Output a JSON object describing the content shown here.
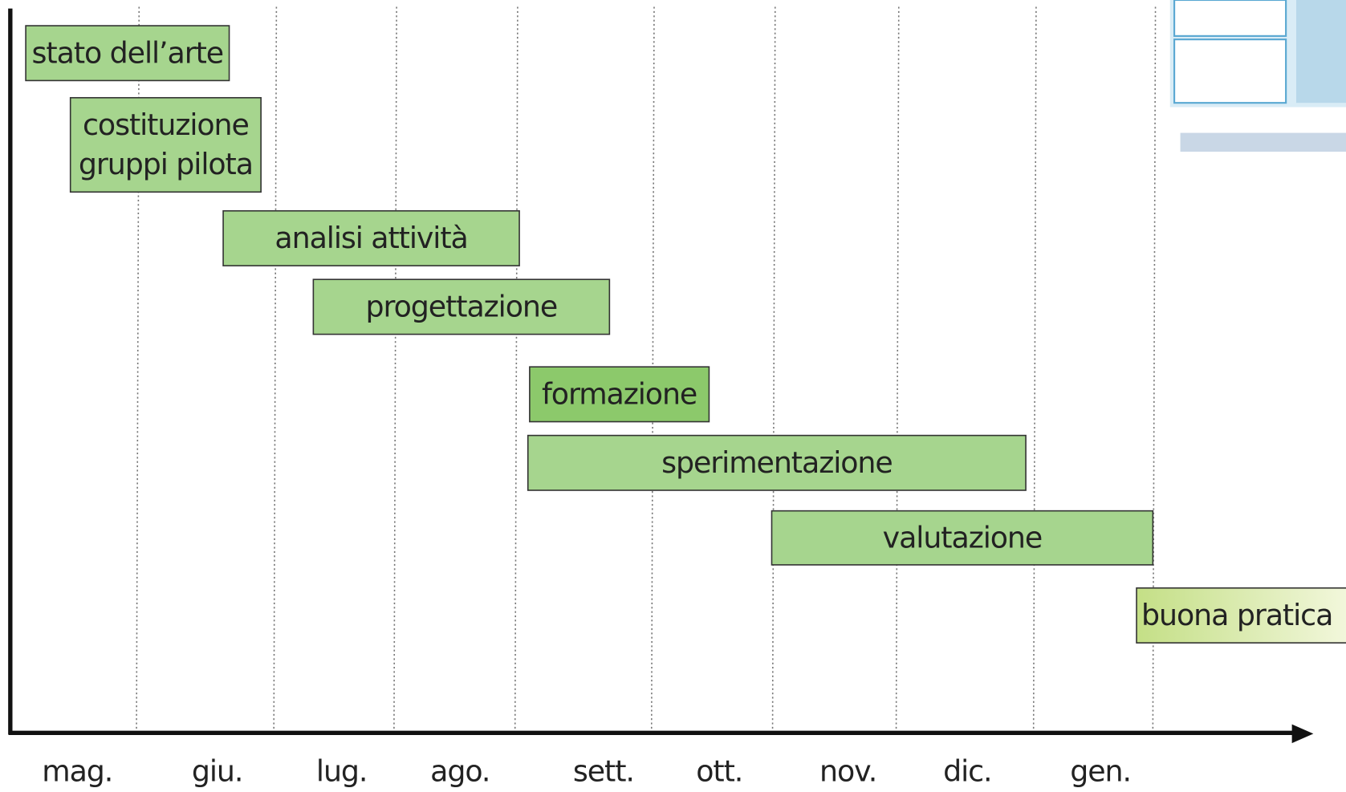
{
  "tasks": [
    {
      "lines": [
        "stato dell’arte"
      ]
    },
    {
      "lines": [
        "costituzione",
        "gruppi pilota"
      ]
    },
    {
      "lines": [
        "analisi attività"
      ]
    },
    {
      "lines": [
        "progettazione"
      ]
    },
    {
      "lines": [
        "formazione"
      ]
    },
    {
      "lines": [
        "sperimentazione"
      ]
    },
    {
      "lines": [
        "valutazione"
      ]
    },
    {
      "lines": [
        "buona pratica"
      ]
    }
  ],
  "months": [
    "mag.",
    "giu.",
    "lug.",
    "ago.",
    "sett.",
    "ott.",
    "nov.",
    "dic.",
    "gen."
  ]
}
